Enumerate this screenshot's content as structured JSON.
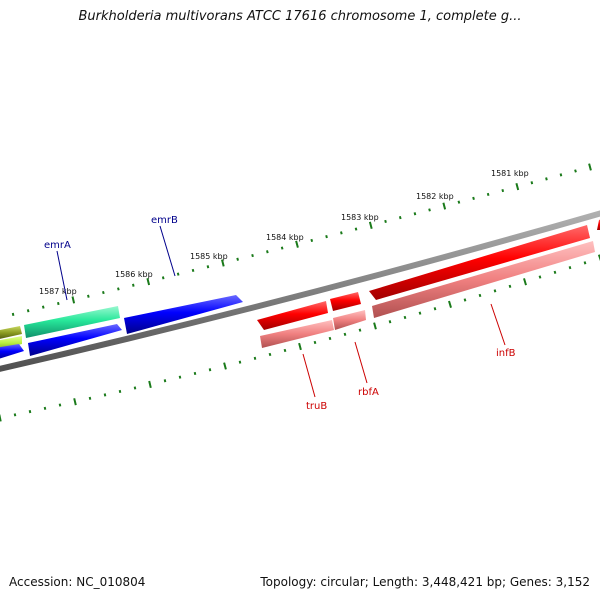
{
  "title": "Burkholderia multivorans ATCC 17616 chromosome 1, complete g...",
  "footer": {
    "accession": "Accession: NC_010804",
    "summary": "Topology: circular; Length: 3,448,421 bp; Genes: 3,152"
  },
  "map": {
    "backbone_color": "#808080",
    "tick_color": "#1a7a1a",
    "tick_labels": [
      {
        "text": "1581 kbp",
        "kbp": 1581
      },
      {
        "text": "1582 kbp",
        "kbp": 1582
      },
      {
        "text": "1583 kbp",
        "kbp": 1583
      },
      {
        "text": "1584 kbp",
        "kbp": 1584
      },
      {
        "text": "1585 kbp",
        "kbp": 1585
      },
      {
        "text": "1586 kbp",
        "kbp": 1586
      },
      {
        "text": "1587 kbp",
        "kbp": 1587
      }
    ],
    "genes": [
      {
        "name": "emrA",
        "label_color": "#00008b",
        "color": "#27e89a",
        "track": "outer"
      },
      {
        "name": "emrB",
        "label_color": "#00008b",
        "color": "#0000ff",
        "track": "outer"
      },
      {
        "name": "truB",
        "label_color": "#cc0000",
        "color": "#ff0000",
        "track": "outer"
      },
      {
        "name": "rbfA",
        "label_color": "#cc0000",
        "color": "#ff0000",
        "track": "outer"
      },
      {
        "name": "infB",
        "label_color": "#cc0000",
        "color": "#ff0000",
        "track": "outer"
      }
    ],
    "track_colors": {
      "olive": "#8a9a20",
      "lime": "#b8f040",
      "green": "#27e89a",
      "blue": "#0000ff",
      "red": "#ff0000",
      "pink": "#f08080"
    }
  }
}
